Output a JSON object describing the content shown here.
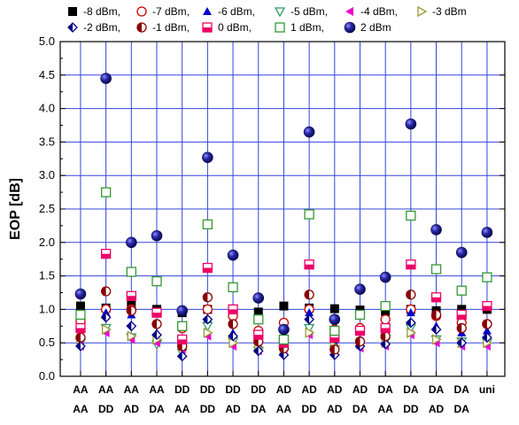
{
  "chart_data": {
    "type": "scatter",
    "ylabel": "EOP [dB]",
    "ylim": [
      0.0,
      5.0
    ],
    "yticks": [
      "0.0",
      "0.5",
      "1.0",
      "1.5",
      "2.0",
      "2.5",
      "3.0",
      "3.5",
      "4.0",
      "4.5",
      "5.0"
    ],
    "grid": true,
    "legend_position": "top",
    "categories": [
      [
        "AA",
        "AA"
      ],
      [
        "AA",
        "DD"
      ],
      [
        "AA",
        "AD"
      ],
      [
        "AA",
        "DA"
      ],
      [
        "DD",
        "AA"
      ],
      [
        "DD",
        "DD"
      ],
      [
        "DD",
        "AD"
      ],
      [
        "DD",
        "DA"
      ],
      [
        "AD",
        "AA"
      ],
      [
        "AD",
        "DD"
      ],
      [
        "AD",
        "AD"
      ],
      [
        "AD",
        "DA"
      ],
      [
        "DA",
        "AA"
      ],
      [
        "DA",
        "DD"
      ],
      [
        "DA",
        "AD"
      ],
      [
        "DA",
        "DA"
      ],
      [
        "uni",
        ""
      ]
    ],
    "series": [
      {
        "name": "-8 dBm,",
        "marker": "square-filled",
        "color": "#000000",
        "values": [
          1.05,
          1.02,
          1.06,
          1.0,
          0.95,
          1.0,
          0.98,
          0.96,
          1.05,
          1.02,
          1.01,
          0.99,
          0.97,
          1.0,
          0.98,
          1.0,
          1.0
        ]
      },
      {
        "name": "-7 dBm,",
        "marker": "circle-open",
        "color": "#cc0000",
        "values": [
          0.82,
          1.0,
          1.0,
          0.95,
          0.72,
          1.0,
          0.9,
          0.68,
          0.8,
          1.0,
          0.7,
          0.72,
          0.85,
          1.0,
          0.9,
          0.8,
          0.78
        ]
      },
      {
        "name": "-6 dBm,",
        "marker": "triangle-up",
        "color": "#0000cc",
        "values": [
          0.62,
          0.95,
          0.92,
          0.65,
          0.5,
          0.85,
          0.65,
          0.48,
          0.45,
          0.95,
          0.5,
          0.55,
          0.65,
          0.95,
          0.75,
          0.65,
          0.68
        ]
      },
      {
        "name": "-5 dBm,",
        "marker": "triangle-down-open",
        "color": "#339966",
        "values": [
          0.5,
          0.72,
          0.58,
          0.48,
          0.35,
          0.75,
          0.52,
          0.38,
          0.4,
          0.72,
          0.4,
          0.48,
          0.52,
          0.72,
          0.55,
          0.52,
          0.5
        ]
      },
      {
        "name": "-4 dBm,",
        "marker": "triangle-left",
        "color": "#ee00cc",
        "values": [
          0.45,
          0.65,
          0.55,
          0.5,
          0.4,
          0.6,
          0.45,
          0.38,
          0.35,
          0.62,
          0.4,
          0.42,
          0.45,
          0.62,
          0.5,
          0.45,
          0.45
        ]
      },
      {
        "name": "-3 dBm",
        "marker": "triangle-right-open",
        "color": "#999933",
        "values": [
          0.55,
          0.7,
          0.6,
          0.55,
          0.45,
          0.65,
          0.5,
          0.42,
          0.4,
          0.65,
          0.45,
          0.5,
          0.5,
          0.65,
          0.55,
          0.5,
          0.5
        ]
      },
      {
        "name": "-2 dBm,",
        "marker": "diamond-half",
        "color": "#000088",
        "values": [
          0.45,
          0.88,
          0.75,
          0.62,
          0.3,
          0.85,
          0.6,
          0.38,
          0.32,
          0.85,
          0.32,
          0.45,
          0.48,
          0.8,
          0.7,
          0.5,
          0.58
        ]
      },
      {
        "name": "-1 dBm,",
        "marker": "circle-half",
        "color": "#880000",
        "values": [
          0.58,
          1.27,
          0.98,
          0.78,
          0.45,
          1.18,
          0.78,
          0.52,
          0.42,
          1.22,
          0.4,
          0.52,
          0.6,
          1.22,
          0.92,
          0.72,
          0.78
        ]
      },
      {
        "name": "0 dBm,",
        "marker": "square-half",
        "color": "#ee0066",
        "values": [
          0.72,
          1.83,
          1.2,
          0.95,
          0.55,
          1.62,
          1.0,
          0.62,
          0.5,
          1.67,
          0.58,
          0.68,
          0.72,
          1.67,
          1.18,
          0.92,
          1.05
        ]
      },
      {
        "name": "1 dBm,",
        "marker": "square-open",
        "color": "#339933",
        "values": [
          0.92,
          2.75,
          1.56,
          1.42,
          0.75,
          2.27,
          1.33,
          0.85,
          0.55,
          2.42,
          0.68,
          0.92,
          1.05,
          2.4,
          1.6,
          1.28,
          1.48
        ]
      },
      {
        "name": "2 dBm",
        "marker": "sphere",
        "color": "#1a1a99",
        "values": [
          1.23,
          4.45,
          2.0,
          2.1,
          0.98,
          3.27,
          1.81,
          1.17,
          0.7,
          3.65,
          0.85,
          1.3,
          1.48,
          3.77,
          2.19,
          1.85,
          2.15
        ]
      }
    ]
  }
}
